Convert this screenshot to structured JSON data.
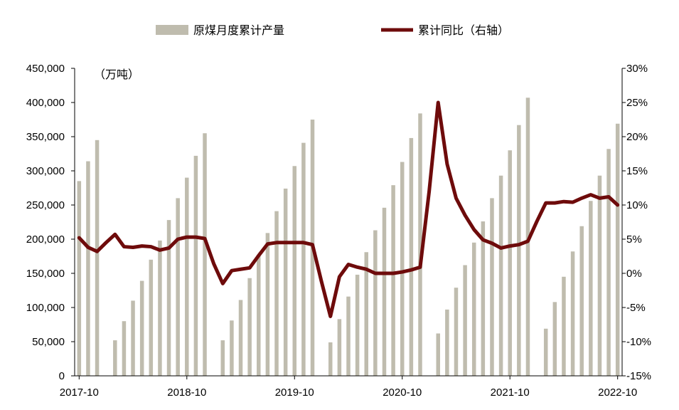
{
  "chart_data": {
    "type": "bar+line",
    "legend": {
      "bar_label": "原煤月度累计产量",
      "line_label": "累计同比（右轴）",
      "placement": "top"
    },
    "left_unit": "（万吨）",
    "colors": {
      "bar": "#bfbcae",
      "line": "#6e0b0b",
      "axis": "#000000"
    },
    "grid": false,
    "y_left": {
      "min": 0,
      "max": 450000,
      "ticks": [
        "0",
        "50,000",
        "100,000",
        "150,000",
        "200,000",
        "250,000",
        "300,000",
        "350,000",
        "400,000",
        "450,000"
      ]
    },
    "y_right": {
      "min": -15,
      "max": 30,
      "ticks": [
        "-15%",
        "-10%",
        "-5%",
        "0%",
        "5%",
        "10%",
        "15%",
        "20%",
        "25%",
        "30%"
      ]
    },
    "x_ticks": [
      "2017-10",
      "2018-10",
      "2019-10",
      "2020-10",
      "2021-10",
      "2022-10"
    ],
    "periods": [
      {
        "x": "2017-10",
        "bar": 285000,
        "yoy": 5.2
      },
      {
        "x": "2017-11",
        "bar": 314000,
        "yoy": 3.8
      },
      {
        "x": "2017-12",
        "bar": 345000,
        "yoy": 3.2
      },
      {
        "x": "2018-01",
        "bar": null,
        "yoy": 4.5
      },
      {
        "x": "2018-02",
        "bar": 52000,
        "yoy": 5.7
      },
      {
        "x": "2018-03",
        "bar": 80000,
        "yoy": 3.9
      },
      {
        "x": "2018-04",
        "bar": 110000,
        "yoy": 3.8
      },
      {
        "x": "2018-05",
        "bar": 139000,
        "yoy": 4.0
      },
      {
        "x": "2018-06",
        "bar": 170000,
        "yoy": 3.9
      },
      {
        "x": "2018-07",
        "bar": 198000,
        "yoy": 3.4
      },
      {
        "x": "2018-08",
        "bar": 228000,
        "yoy": 3.7
      },
      {
        "x": "2018-09",
        "bar": 260000,
        "yoy": 5.0
      },
      {
        "x": "2018-10",
        "bar": 290000,
        "yoy": 5.3
      },
      {
        "x": "2018-11",
        "bar": 322000,
        "yoy": 5.3
      },
      {
        "x": "2018-12",
        "bar": 355000,
        "yoy": 5.1
      },
      {
        "x": "2019-01",
        "bar": null,
        "yoy": 1.4
      },
      {
        "x": "2019-02",
        "bar": 52000,
        "yoy": -1.5
      },
      {
        "x": "2019-03",
        "bar": 81000,
        "yoy": 0.4
      },
      {
        "x": "2019-04",
        "bar": 111000,
        "yoy": 0.6
      },
      {
        "x": "2019-05",
        "bar": 143000,
        "yoy": 0.8
      },
      {
        "x": "2019-06",
        "bar": 177000,
        "yoy": 2.6
      },
      {
        "x": "2019-07",
        "bar": 209000,
        "yoy": 4.3
      },
      {
        "x": "2019-08",
        "bar": 241000,
        "yoy": 4.5
      },
      {
        "x": "2019-09",
        "bar": 274000,
        "yoy": 4.5
      },
      {
        "x": "2019-10",
        "bar": 307000,
        "yoy": 4.5
      },
      {
        "x": "2019-11",
        "bar": 341000,
        "yoy": 4.5
      },
      {
        "x": "2019-12",
        "bar": 375000,
        "yoy": 4.2
      },
      {
        "x": "2020-01",
        "bar": null,
        "yoy": -1.2
      },
      {
        "x": "2020-02",
        "bar": 49000,
        "yoy": -6.3
      },
      {
        "x": "2020-03",
        "bar": 83000,
        "yoy": -0.5
      },
      {
        "x": "2020-04",
        "bar": 116000,
        "yoy": 1.3
      },
      {
        "x": "2020-05",
        "bar": 148000,
        "yoy": 0.9
      },
      {
        "x": "2020-06",
        "bar": 181000,
        "yoy": 0.6
      },
      {
        "x": "2020-07",
        "bar": 213000,
        "yoy": 0.0
      },
      {
        "x": "2020-08",
        "bar": 246000,
        "yoy": 0.0
      },
      {
        "x": "2020-09",
        "bar": 279000,
        "yoy": 0.0
      },
      {
        "x": "2020-10",
        "bar": 313000,
        "yoy": 0.2
      },
      {
        "x": "2020-11",
        "bar": 348000,
        "yoy": 0.5
      },
      {
        "x": "2020-12",
        "bar": 384000,
        "yoy": 0.9
      },
      {
        "x": "2021-01",
        "bar": null,
        "yoy": 12.0
      },
      {
        "x": "2021-02",
        "bar": 62000,
        "yoy": 25.0
      },
      {
        "x": "2021-03",
        "bar": 97000,
        "yoy": 16.0
      },
      {
        "x": "2021-04",
        "bar": 129000,
        "yoy": 11.0
      },
      {
        "x": "2021-05",
        "bar": 162000,
        "yoy": 8.5
      },
      {
        "x": "2021-06",
        "bar": 195000,
        "yoy": 6.4
      },
      {
        "x": "2021-07",
        "bar": 226000,
        "yoy": 4.9
      },
      {
        "x": "2021-08",
        "bar": 260000,
        "yoy": 4.4
      },
      {
        "x": "2021-09",
        "bar": 293000,
        "yoy": 3.7
      },
      {
        "x": "2021-10",
        "bar": 330000,
        "yoy": 4.0
      },
      {
        "x": "2021-11",
        "bar": 367000,
        "yoy": 4.2
      },
      {
        "x": "2021-12",
        "bar": 407000,
        "yoy": 4.7
      },
      {
        "x": "2022-01",
        "bar": null,
        "yoy": 7.6
      },
      {
        "x": "2022-02",
        "bar": 69000,
        "yoy": 10.3
      },
      {
        "x": "2022-03",
        "bar": 108000,
        "yoy": 10.3
      },
      {
        "x": "2022-04",
        "bar": 145000,
        "yoy": 10.5
      },
      {
        "x": "2022-05",
        "bar": 182000,
        "yoy": 10.4
      },
      {
        "x": "2022-06",
        "bar": 219000,
        "yoy": 11.0
      },
      {
        "x": "2022-07",
        "bar": 256000,
        "yoy": 11.5
      },
      {
        "x": "2022-08",
        "bar": 293000,
        "yoy": 11.0
      },
      {
        "x": "2022-09",
        "bar": 332000,
        "yoy": 11.2
      },
      {
        "x": "2022-10",
        "bar": 369000,
        "yoy": 10.0
      }
    ]
  }
}
